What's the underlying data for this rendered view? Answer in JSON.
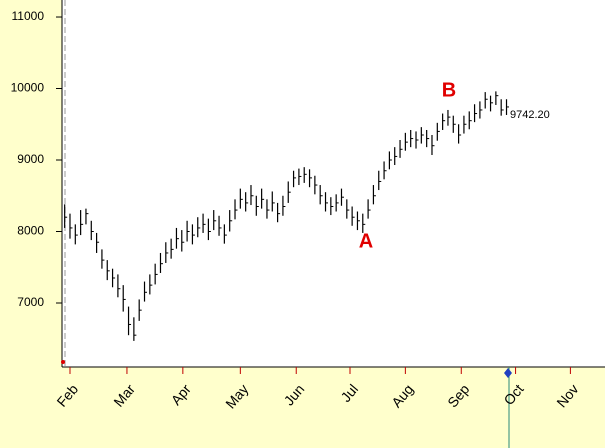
{
  "chart_data": {
    "type": "ohlc",
    "xlim": [
      -0.5,
      101.5
    ],
    "xticks": [
      {
        "value": 1,
        "label": "Feb"
      },
      {
        "value": 11.7,
        "label": "Mar"
      },
      {
        "value": 22.2,
        "label": "Apr"
      },
      {
        "value": 33,
        "label": "May"
      },
      {
        "value": 43.5,
        "label": "Jun"
      },
      {
        "value": 53.6,
        "label": "Jul"
      },
      {
        "value": 64,
        "label": "Aug"
      },
      {
        "value": 74.5,
        "label": "Sep"
      },
      {
        "value": 84.7,
        "label": "Oct"
      },
      {
        "value": 95,
        "label": "Nov"
      }
    ],
    "ylim": [
      6105,
      11238
    ],
    "yticks": [
      7000,
      8000,
      9000,
      10000,
      11000
    ],
    "color": "#000000",
    "annotations": [
      "A",
      "B"
    ],
    "close_label": "9742.20",
    "series": [
      {
        "color": "#000000",
        "high": [
          8380,
          8250,
          8100,
          8300,
          8320,
          8150,
          7980,
          7750,
          7600,
          7480,
          7400,
          7250,
          6950,
          6800,
          7050,
          7300,
          7400,
          7550,
          7700,
          7850,
          7900,
          8050,
          8020,
          8150,
          8100,
          8200,
          8250,
          8180,
          8300,
          8220,
          8100,
          8300,
          8450,
          8600,
          8550,
          8650,
          8500,
          8600,
          8450,
          8560,
          8400,
          8500,
          8700,
          8850,
          8880,
          8900,
          8870,
          8780,
          8650,
          8550,
          8480,
          8520,
          8600,
          8450,
          8350,
          8280,
          8250,
          8450,
          8650,
          8850,
          8980,
          9120,
          9180,
          9280,
          9380,
          9420,
          9400,
          9460,
          9420,
          9350,
          9520,
          9650,
          9700,
          9620,
          9500,
          9620,
          9680,
          9780,
          9820,
          9950,
          9900,
          9960,
          9850,
          9850
        ],
        "low": [
          8050,
          7900,
          7820,
          7950,
          8100,
          7880,
          7700,
          7480,
          7320,
          7220,
          7080,
          6880,
          6550,
          6470,
          6750,
          7020,
          7120,
          7260,
          7420,
          7560,
          7620,
          7760,
          7720,
          7860,
          7820,
          7920,
          7980,
          7880,
          8020,
          7940,
          7830,
          8000,
          8170,
          8320,
          8280,
          8370,
          8220,
          8320,
          8180,
          8280,
          8130,
          8220,
          8400,
          8620,
          8650,
          8680,
          8620,
          8520,
          8380,
          8280,
          8230,
          8280,
          8360,
          8180,
          8080,
          8020,
          7980,
          8180,
          8380,
          8580,
          8730,
          8870,
          8930,
          9030,
          9130,
          9180,
          9160,
          9230,
          9180,
          9070,
          9270,
          9420,
          9480,
          9380,
          9230,
          9370,
          9430,
          9530,
          9580,
          9720,
          9680,
          9770,
          9620,
          9630
        ],
        "close": [
          8200,
          8050,
          7950,
          8100,
          8250,
          8000,
          7850,
          7600,
          7450,
          7350,
          7200,
          7050,
          6700,
          6550,
          6900,
          7150,
          7250,
          7400,
          7550,
          7700,
          7750,
          7900,
          7850,
          8000,
          7950,
          8050,
          8100,
          8000,
          8150,
          8050,
          7950,
          8150,
          8300,
          8450,
          8400,
          8500,
          8350,
          8450,
          8300,
          8400,
          8250,
          8350,
          8550,
          8750,
          8770,
          8800,
          8750,
          8650,
          8500,
          8400,
          8350,
          8400,
          8480,
          8300,
          8200,
          8150,
          8100,
          8300,
          8500,
          8700,
          8850,
          9000,
          9050,
          9150,
          9250,
          9300,
          9280,
          9350,
          9300,
          9200,
          9400,
          9550,
          9600,
          9500,
          9350,
          9500,
          9550,
          9650,
          9700,
          9850,
          9800,
          9900,
          9700,
          9742.2
        ]
      }
    ]
  }
}
